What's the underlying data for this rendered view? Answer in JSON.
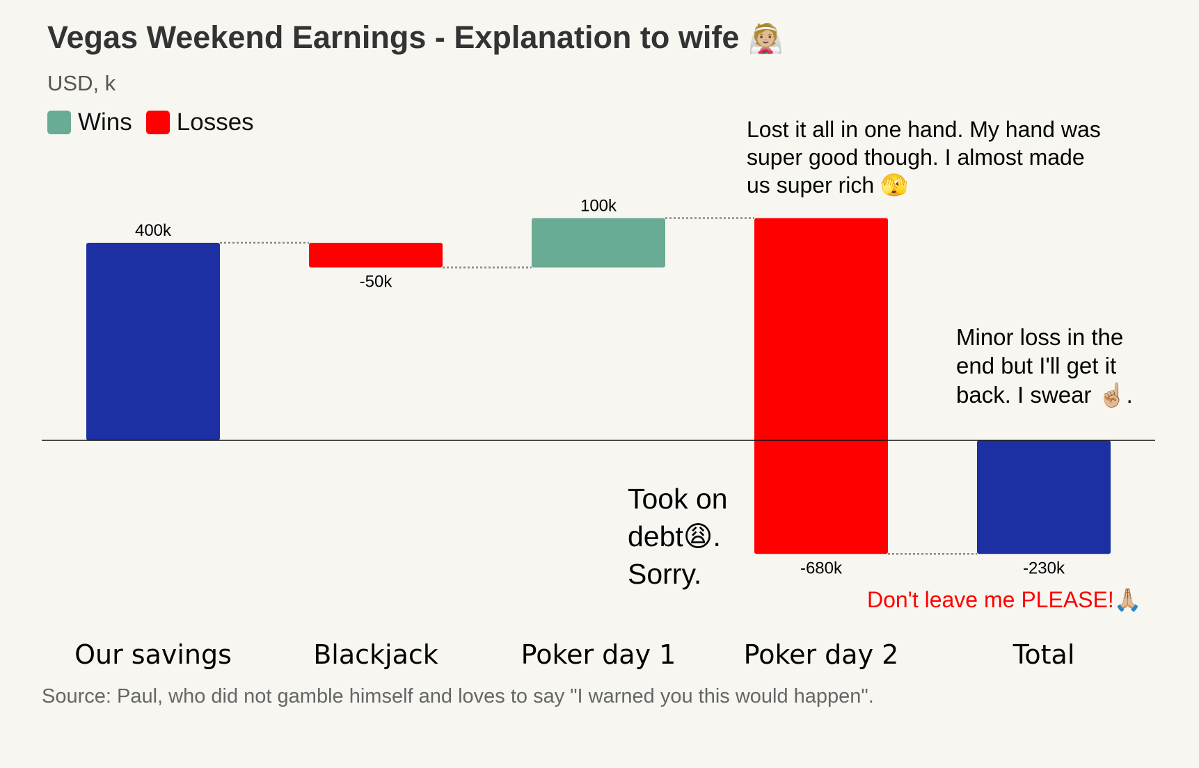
{
  "title": "Vegas Weekend Earnings - Explanation to wife",
  "title_emoji": "👰🏼",
  "subtitle": "USD, k",
  "legend": [
    {
      "label": "Wins",
      "color": "#6aab95"
    },
    {
      "label": "Losses",
      "color": "#ff0000"
    }
  ],
  "colors": {
    "total": "#1c2fa3",
    "win": "#6aab95",
    "loss": "#ff0000",
    "axis": "#111111",
    "connector": "#888888"
  },
  "chart_data": {
    "type": "waterfall",
    "categories": [
      "Our savings",
      "Blackjack",
      "Poker day 1",
      "Poker day 2",
      "Total"
    ],
    "values": [
      400,
      -50,
      100,
      -680,
      -230
    ],
    "kinds": [
      "total",
      "loss",
      "win",
      "loss",
      "total"
    ],
    "data_labels": [
      "400k",
      "-50k",
      "100k",
      "-680k",
      "-230k"
    ],
    "ylim": [
      -230,
      450
    ],
    "unit": "USD, k"
  },
  "annotations": {
    "poker2": "Lost it all in one hand. My hand was super good though. I almost made us super rich 🫣",
    "total": "Minor loss in the end but I'll get it back. I swear ☝🏼.",
    "debt": "Took on debt😩. Sorry.",
    "plea": "Don't leave me PLEASE!🙏🏼"
  },
  "source": "Source: Paul, who did not gamble himself and loves to say \"I warned you this would happen\"."
}
